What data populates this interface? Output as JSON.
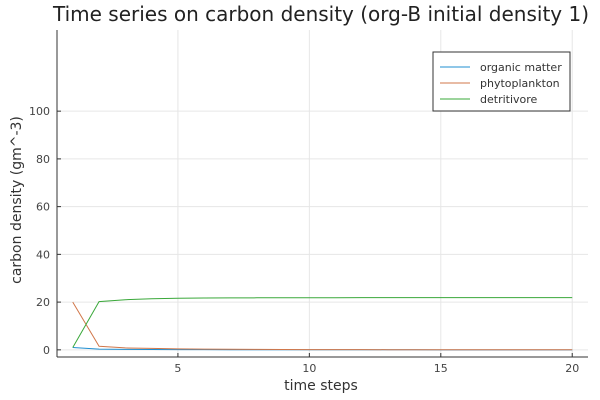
{
  "chart_data": {
    "type": "line",
    "title": "Time series on carbon density (org-B initial density 1)",
    "xlabel": "time steps",
    "ylabel": "carbon density (gm^-3)",
    "xlim": [
      0.4,
      20.6
    ],
    "ylim": [
      -3,
      134
    ],
    "xticks": [
      5,
      10,
      15,
      20
    ],
    "yticks": [
      0,
      20,
      40,
      60,
      80,
      100
    ],
    "grid": true,
    "legend_position": "top-right",
    "x": [
      1,
      2,
      3,
      4,
      5,
      6,
      7,
      8,
      9,
      10,
      11,
      12,
      13,
      14,
      15,
      16,
      17,
      18,
      19,
      20
    ],
    "series": [
      {
        "name": "organic matter",
        "color": "#1f8fd1",
        "values": [
          1,
          0.3,
          0.2,
          0.15,
          0.1,
          0.08,
          0.06,
          0.05,
          0.04,
          0.03,
          0.03,
          0.02,
          0.02,
          0.02,
          0.01,
          0.01,
          0.01,
          0.01,
          0.01,
          0.01
        ]
      },
      {
        "name": "phytoplankton",
        "color": "#d1774a",
        "values": [
          20,
          1.5,
          0.8,
          0.6,
          0.4,
          0.3,
          0.25,
          0.2,
          0.15,
          0.1,
          0.1,
          0.08,
          0.06,
          0.05,
          0.04,
          0.03,
          0.03,
          0.02,
          0.02,
          0.02
        ]
      },
      {
        "name": "detritivore",
        "color": "#3aa83a",
        "values": [
          1,
          20.2,
          21,
          21.4,
          21.6,
          21.7,
          21.75,
          21.8,
          21.82,
          21.84,
          21.85,
          21.86,
          21.87,
          21.87,
          21.88,
          21.88,
          21.88,
          21.89,
          21.89,
          21.89
        ]
      }
    ]
  }
}
